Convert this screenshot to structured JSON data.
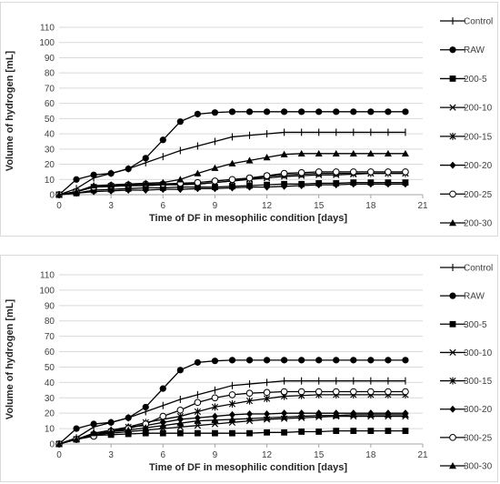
{
  "chart_data": [
    {
      "type": "line",
      "xlabel": "Time of DF in mesophilic condition [days]",
      "ylabel": "Volume of hydrogen [mL]",
      "xlim": [
        0,
        21
      ],
      "ylim": [
        0,
        110
      ],
      "xticks": [
        0,
        3,
        6,
        9,
        12,
        15,
        18,
        21
      ],
      "yticks": [
        0,
        10,
        20,
        30,
        40,
        50,
        60,
        70,
        80,
        90,
        100,
        110
      ],
      "grid": "horizontal",
      "legend": "right",
      "x": [
        0,
        1,
        2,
        3,
        4,
        5,
        6,
        7,
        8,
        9,
        10,
        11,
        12,
        13,
        14,
        15,
        16,
        17,
        18,
        19,
        20
      ],
      "series": [
        {
          "name": "Control",
          "marker": "plus",
          "values": [
            0,
            4,
            11,
            14,
            17,
            21,
            25,
            29,
            32,
            35,
            38,
            39,
            40,
            41,
            41,
            41,
            41,
            41,
            41,
            41,
            41
          ]
        },
        {
          "name": "RAW",
          "marker": "circle",
          "values": [
            0,
            10,
            13,
            14,
            17,
            24,
            36,
            48,
            53,
            54,
            54.5,
            54.5,
            54.5,
            54.5,
            54.5,
            54.5,
            54.5,
            54.5,
            54.5,
            54.5,
            54.5
          ]
        },
        {
          "name": "200-5",
          "marker": "square",
          "values": [
            0,
            1,
            3,
            3.5,
            4,
            4.5,
            4.5,
            5,
            5,
            5,
            5.5,
            6,
            6.5,
            7,
            7,
            7.5,
            7.5,
            8,
            8,
            8,
            8
          ]
        },
        {
          "name": "200-10",
          "marker": "x",
          "values": [
            0,
            2,
            5,
            5.5,
            6,
            6,
            6.5,
            6.5,
            7,
            8,
            9,
            10,
            11,
            12,
            12.5,
            13,
            13,
            13.5,
            14,
            14,
            14
          ]
        },
        {
          "name": "200-15",
          "marker": "asterisk",
          "values": [
            0,
            2,
            5,
            5.5,
            6,
            6,
            6.5,
            7,
            7,
            8,
            9,
            10.5,
            12,
            13,
            13.5,
            14,
            14,
            14,
            14,
            14,
            14
          ]
        },
        {
          "name": "200-20",
          "marker": "diamond",
          "values": [
            0,
            1,
            2,
            2.5,
            3,
            3,
            3.5,
            3.5,
            4,
            4,
            4.5,
            5,
            5,
            5.5,
            6,
            6.5,
            6.5,
            7,
            7,
            7,
            7
          ]
        },
        {
          "name": "200-25",
          "marker": "open-circle",
          "values": [
            0,
            2,
            5,
            6,
            6.5,
            7,
            7,
            7.5,
            8,
            9,
            10,
            11,
            12.5,
            14,
            14.5,
            15,
            15,
            15,
            15,
            15,
            15
          ]
        },
        {
          "name": "200-30",
          "marker": "triangle",
          "values": [
            0,
            2,
            6,
            6.5,
            7,
            7.5,
            8,
            10,
            14,
            17.5,
            20.5,
            22.5,
            24.5,
            26.5,
            27,
            27,
            27,
            27,
            27,
            27,
            27
          ]
        }
      ]
    },
    {
      "type": "line",
      "xlabel": "Time of DF in mesophilic condition [days]",
      "ylabel": "Volume of hydrogen [mL]",
      "xlim": [
        0,
        21
      ],
      "ylim": [
        0,
        110
      ],
      "xticks": [
        0,
        3,
        6,
        9,
        12,
        15,
        18,
        21
      ],
      "yticks": [
        0,
        10,
        20,
        30,
        40,
        50,
        60,
        70,
        80,
        90,
        100,
        110
      ],
      "grid": "horizontal",
      "legend": "right",
      "x": [
        0,
        1,
        2,
        3,
        4,
        5,
        6,
        7,
        8,
        9,
        10,
        11,
        12,
        13,
        14,
        15,
        16,
        17,
        18,
        19,
        20
      ],
      "series": [
        {
          "name": "Control",
          "marker": "plus",
          "values": [
            0,
            4,
            11,
            14,
            17,
            21,
            25,
            29,
            32,
            35,
            38,
            39,
            40,
            41,
            41,
            41,
            41,
            41,
            41,
            41,
            41
          ]
        },
        {
          "name": "RAW",
          "marker": "circle",
          "values": [
            0,
            10,
            13,
            14,
            17,
            24,
            36,
            48,
            53,
            54,
            54.5,
            54.5,
            54.5,
            54.5,
            54.5,
            54.5,
            54.5,
            54.5,
            54.5,
            54.5,
            54.5
          ]
        },
        {
          "name": "300-5",
          "marker": "square",
          "values": [
            0,
            3,
            5.5,
            6,
            6.5,
            7,
            7,
            7,
            7,
            7,
            7,
            7,
            7.5,
            7.5,
            8,
            8,
            8.5,
            8.5,
            8.5,
            8.5,
            8.5
          ]
        },
        {
          "name": "300-10",
          "marker": "x",
          "values": [
            0,
            3,
            6,
            7,
            8,
            9,
            10,
            11,
            12,
            13,
            14,
            15,
            16,
            16.5,
            17,
            17.5,
            18,
            18,
            18,
            18,
            18
          ]
        },
        {
          "name": "300-15",
          "marker": "asterisk",
          "values": [
            0,
            3,
            6,
            8,
            11,
            14,
            16,
            18,
            21,
            24,
            26,
            28,
            29.5,
            31,
            31.5,
            32,
            32,
            32,
            32,
            32,
            32
          ]
        },
        {
          "name": "300-20",
          "marker": "diamond",
          "values": [
            0,
            3,
            7,
            9,
            11,
            12,
            14,
            16,
            17,
            18,
            19,
            19.5,
            19.5,
            20,
            20,
            20,
            20,
            20,
            20,
            20,
            20
          ]
        },
        {
          "name": "300-25",
          "marker": "open-circle",
          "values": [
            0,
            3,
            5,
            8,
            10,
            13,
            18,
            22,
            27,
            30,
            32,
            33,
            33.5,
            34,
            34,
            34,
            34,
            34,
            34,
            34,
            34
          ]
        },
        {
          "name": "300-30",
          "marker": "triangle",
          "values": [
            0,
            3,
            7,
            8,
            9,
            10.5,
            12,
            13.5,
            15,
            15.5,
            16,
            16.5,
            17,
            17.5,
            18,
            18.5,
            18.5,
            19,
            19,
            19,
            19
          ]
        }
      ]
    }
  ]
}
